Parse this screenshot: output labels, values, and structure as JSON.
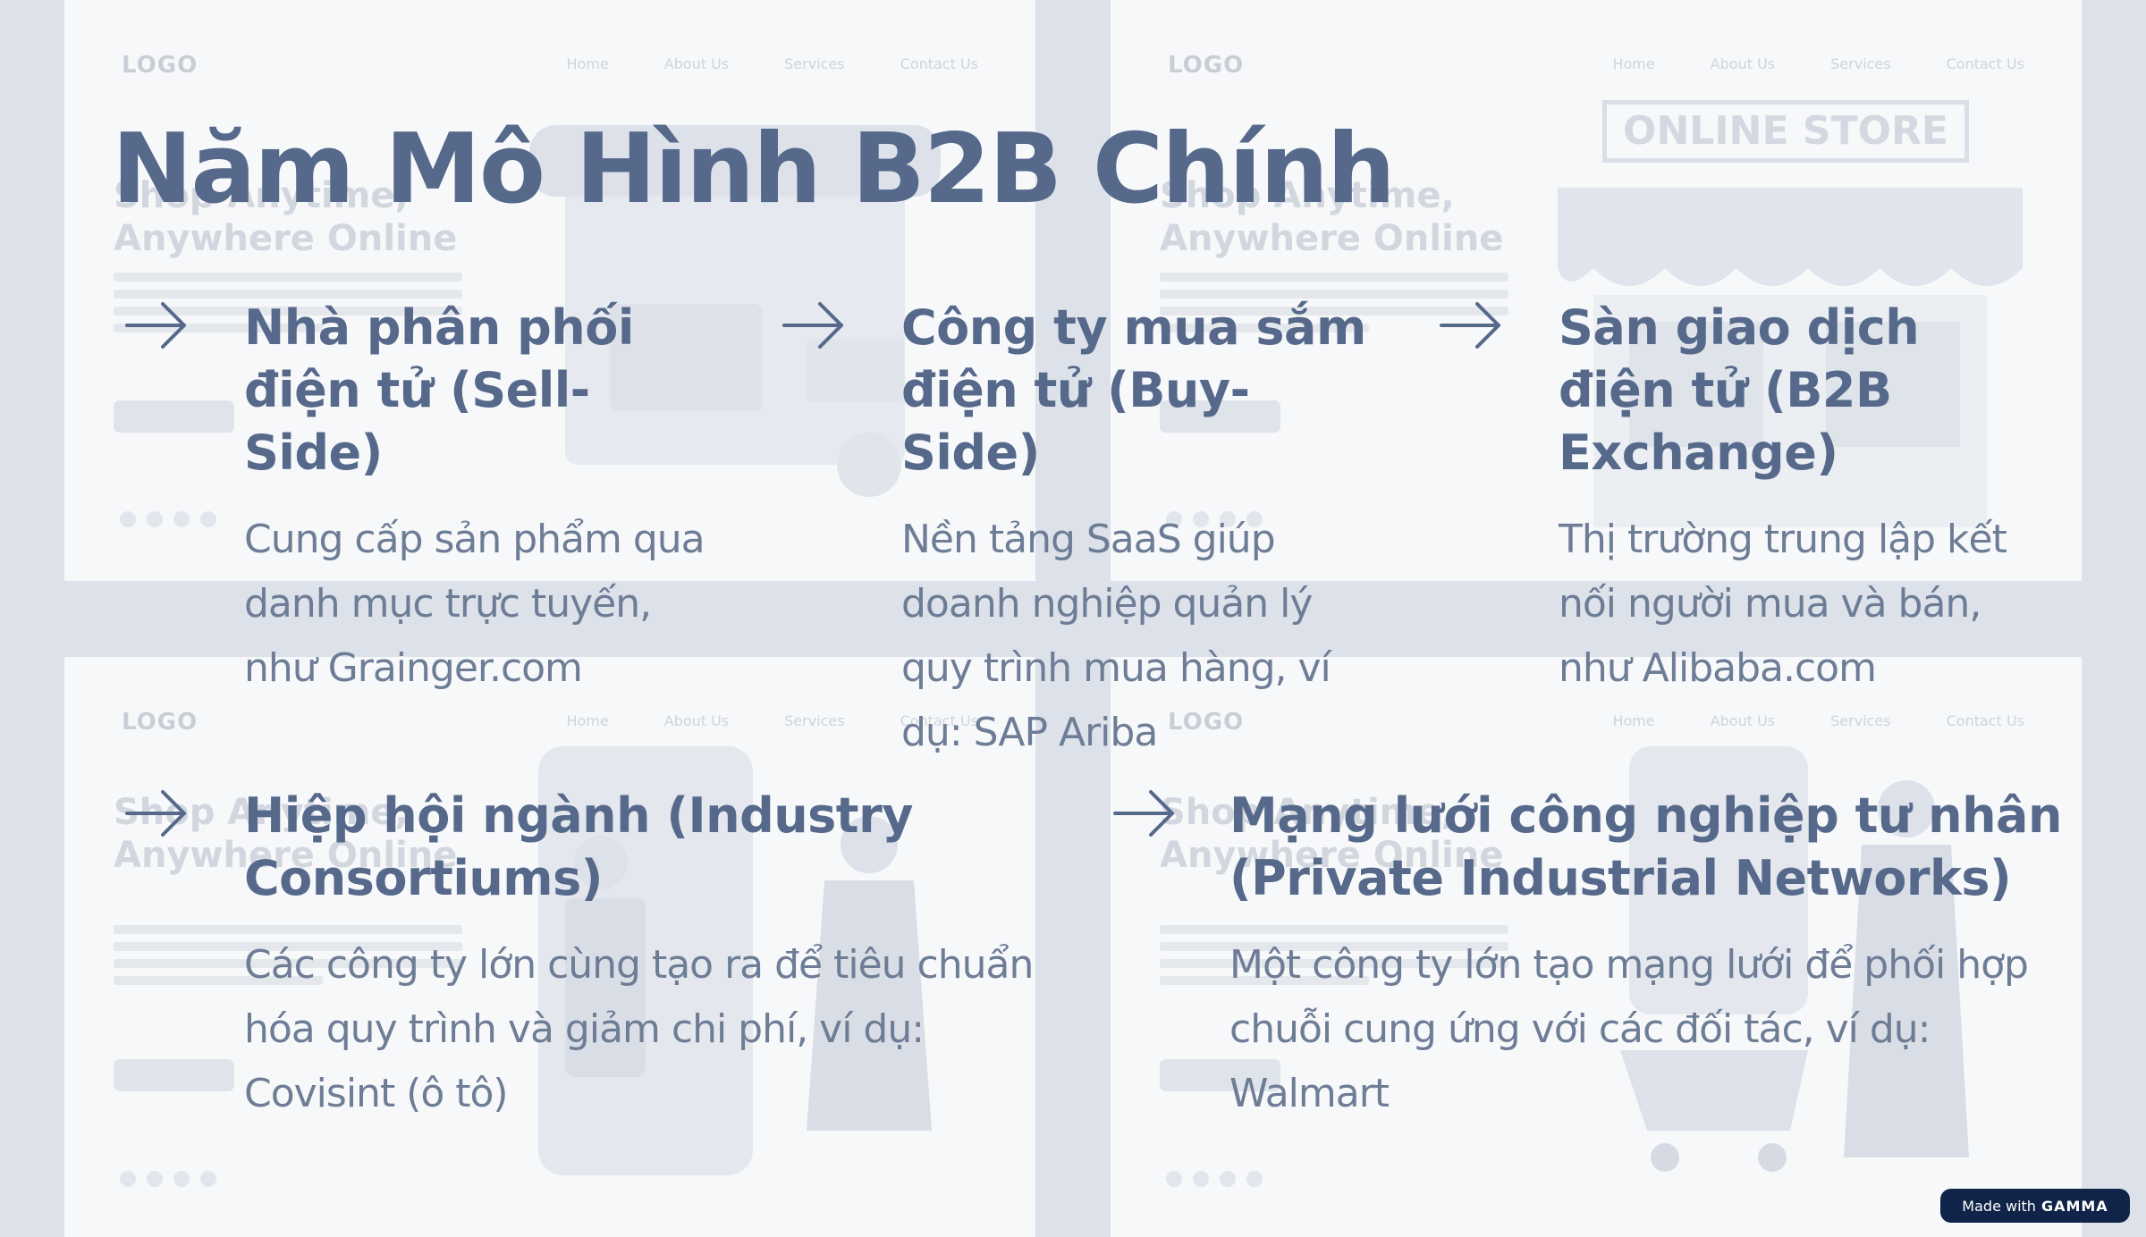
{
  "background_panels": [
    {
      "logo": "LOGO",
      "nav": [
        "Home",
        "About Us",
        "Services",
        "Contact Us"
      ],
      "headline": "Shop Anytime, Anywhere Online"
    },
    {
      "logo": "LOGO",
      "nav": [
        "Home",
        "About Us",
        "Services",
        "Contact Us"
      ],
      "headline": "Shop Anytime, Anywhere Online",
      "sign": "ONLINE STORE"
    },
    {
      "logo": "LOGO",
      "nav": [
        "Home",
        "About Us",
        "Services",
        "Contact Us"
      ],
      "headline": "Shop Anytime, Anywhere Online"
    },
    {
      "logo": "LOGO",
      "nav": [
        "Home",
        "About Us",
        "Services",
        "Contact Us"
      ],
      "headline": "Shop Anytime, Anywhere Online"
    }
  ],
  "slide": {
    "title": "Năm Mô Hình B2B Chính",
    "items": [
      {
        "icon": "arrow-right-icon",
        "heading": "Nhà phân phối điện tử (Sell-Side)",
        "body": "Cung cấp sản phẩm qua danh mục trực tuyến, như Grainger.com"
      },
      {
        "icon": "arrow-right-icon",
        "heading": "Công ty mua sắm điện tử (Buy-Side)",
        "body": "Nền tảng SaaS giúp doanh nghiệp quản lý quy trình mua hàng, ví dụ: SAP Ariba"
      },
      {
        "icon": "arrow-right-icon",
        "heading": "Sàn giao dịch điện tử (B2B Exchange)",
        "body": "Thị trường trung lập kết nối người mua và bán, như Alibaba.com"
      },
      {
        "icon": "arrow-right-icon",
        "heading": "Hiệp hội ngành (Industry Consortiums)",
        "body": "Các công ty lớn cùng tạo ra để tiêu chuẩn hóa quy trình và giảm chi phí, ví dụ: Covisint (ô tô)"
      },
      {
        "icon": "arrow-right-icon",
        "heading": "Mạng lưới công nghiệp tư nhân (Private Industrial Networks)",
        "body": "Một công ty lớn tạo mạng lưới để phối hợp chuỗi cung ứng với các đối tác, ví dụ: Walmart"
      }
    ]
  },
  "badge": {
    "prefix": "Made with",
    "brand": "GAMMA"
  },
  "colors": {
    "title": "#56698b",
    "body": "#6e7d96",
    "background": "#dde2ea",
    "badge": "#0f2448"
  }
}
